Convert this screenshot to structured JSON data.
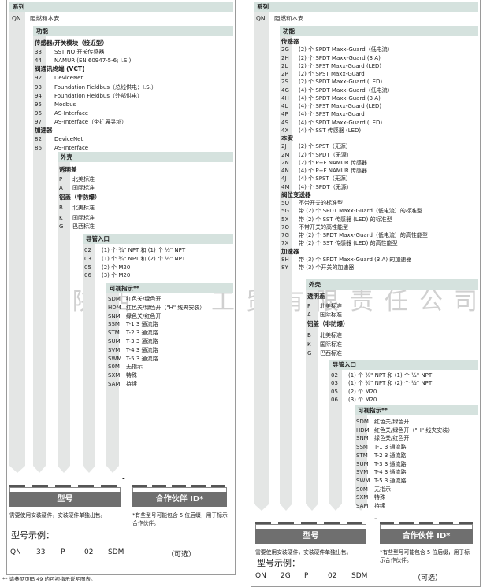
{
  "left": {
    "series_header": "系列",
    "series_code": "QN",
    "series_desc": "阻燃和本安",
    "functions": {
      "header": "功能",
      "rows": [
        {
          "h": "传感器/开关模块（接近型）"
        },
        {
          "c": "33",
          "t": "SST NO 开关传感器"
        },
        {
          "c": "44",
          "t": "NAMUR (EN 60947-5-6; I.S.)"
        },
        {
          "h": "阀通讯终端 (VCT)"
        },
        {
          "c": "92",
          "t": "DeviceNet"
        },
        {
          "c": "93",
          "t": "Foundation Fieldbus（总线供电；I.S.）"
        },
        {
          "c": "94",
          "t": "Foundation Fieldbus（外部供电）"
        },
        {
          "c": "95",
          "t": "Modbus"
        },
        {
          "c": "96",
          "t": "AS-Interface"
        },
        {
          "c": "97",
          "t": "AS-Interface（带扩展寻址）"
        },
        {
          "h": "加速器"
        },
        {
          "c": "82",
          "t": "DeviceNet"
        },
        {
          "c": "86",
          "t": "AS-Interface"
        }
      ]
    },
    "housing": {
      "header": "外壳",
      "rows": [
        {
          "h": "透明盖"
        },
        {
          "c": "P",
          "t": "北美标准"
        },
        {
          "c": "A",
          "t": "国际标准"
        },
        {
          "h": "铝盖（非防爆）"
        },
        {
          "c": "B",
          "t": "北美标准"
        },
        {
          "c": "K",
          "t": "国际标准"
        },
        {
          "c": "G",
          "t": "巴西标准"
        }
      ]
    },
    "conduit": {
      "header": "导管入口",
      "rows": [
        {
          "c": "02",
          "t": "(1) 个 ¾\" NPT 和 (1) 个 ½\" NPT"
        },
        {
          "c": "03",
          "t": "(1) 个 ¾\" NPT 和 (2) 个 ½\" NPT"
        },
        {
          "c": "05",
          "t": "(2) 个 M20"
        },
        {
          "c": "06",
          "t": "(3) 个 M20"
        }
      ]
    },
    "indicator": {
      "header": "可视指示**",
      "rows": [
        {
          "c": "SDM",
          "t": "红色关/绿色开"
        },
        {
          "c": "HDM",
          "t": "红色关/绿色开（\"H\" 线夹安装）"
        },
        {
          "c": "SNM",
          "t": "绿色关/红色开"
        },
        {
          "c": "SSM",
          "t": "T-1 3 通流路"
        },
        {
          "c": "STM",
          "t": "T-2 3 通流路"
        },
        {
          "c": "SUM",
          "t": "T-3 3 通流路"
        },
        {
          "c": "SVM",
          "t": "T-4 3 通流路"
        },
        {
          "c": "SWM",
          "t": "T-5 3 通流路"
        },
        {
          "c": "S0M",
          "t": "无指示"
        },
        {
          "c": "SXM",
          "t": "特殊"
        },
        {
          "c": "SAM",
          "t": "持续"
        }
      ]
    },
    "footer": {
      "separator": "-",
      "model_label": "型号",
      "partner_label": "合作伙伴 ID*",
      "note_left": "需要使用安装硬件，安装硬件单独出售。",
      "note_right": "*有些型号可能包含 5 位后缀，用于标示合作伙伴。",
      "example_label": "型号示例：",
      "example": [
        "QN",
        "33",
        "P",
        "02",
        "SDM"
      ],
      "optional": "（可选）"
    }
  },
  "right": {
    "series_header": "系列",
    "series_code": "QN",
    "series_desc": "阻燃和本安",
    "functions": {
      "header": "功能",
      "rows": [
        {
          "h": "传感器"
        },
        {
          "c": "2G",
          "t": "(2) 个 SPDT Maxx-Guard（低电流）"
        },
        {
          "c": "2H",
          "t": "(2) 个 SPDT Maxx-Guard (3 A)"
        },
        {
          "c": "2L",
          "t": "(2) 个 SPST Maxx-Guard (LED)"
        },
        {
          "c": "2P",
          "t": "(2) 个 SPST Maxx-Guard"
        },
        {
          "c": "2S",
          "t": "(2) 个 SPDT Maxx-Guard (LED)"
        },
        {
          "c": "4G",
          "t": "(4) 个 SPDT Maxx-Guard（低电流）"
        },
        {
          "c": "4H",
          "t": "(4) 个 SPDT Maxx-Guard (3 A)"
        },
        {
          "c": "4L",
          "t": "(4) 个 SPST Maxx-Guard (LED)"
        },
        {
          "c": "4P",
          "t": "(4) 个 SPST Maxx-Guard"
        },
        {
          "c": "4S",
          "t": "(4) 个 SPDT Maxx-Guard (LED)"
        },
        {
          "c": "4X",
          "t": "(4) 个 SST 传感器 (LED)"
        },
        {
          "h": "本安"
        },
        {
          "c": "2J",
          "t": "(2) 个 SPST（无源）"
        },
        {
          "c": "2M",
          "t": "(2) 个 SPDT（无源）"
        },
        {
          "c": "2N",
          "t": "(2) 个 P+F NAMUR 传感器"
        },
        {
          "c": "4N",
          "t": "(4) 个 P+F NAMUR 传感器"
        },
        {
          "c": "4J",
          "t": "(4) 个 SPST（无源）"
        },
        {
          "c": "4M",
          "t": "(4) 个 SPDT（无源）"
        },
        {
          "h": "阀位变送器"
        },
        {
          "c": "5O",
          "t": "不带开关的标准型"
        },
        {
          "c": "5G",
          "t": "带 (2) 个 SPDT Maxx-Guard（低电流）的标准型"
        },
        {
          "c": "5X",
          "t": "带 (2) 个 SST 传感器 (LED) 的标准型"
        },
        {
          "c": "7O",
          "t": "不带开关的高性能型"
        },
        {
          "c": "7G",
          "t": "带 (2) 个 SPDT Maxx-Guard（低电流）的高性能型"
        },
        {
          "c": "7X",
          "t": "带 (2) 个 SST 传感器 (LED) 的高性能型"
        },
        {
          "h": "加速器"
        },
        {
          "c": "8H",
          "t": "带 (3) 个 SPDT Maxx-Guard (3 A) 的加速器"
        },
        {
          "c": "8Y",
          "t": "带 (3) 个开关的加速器"
        }
      ]
    },
    "housing": {
      "header": "外壳",
      "rows": [
        {
          "h": "透明盖"
        },
        {
          "c": "P",
          "t": "北美标准"
        },
        {
          "c": "A",
          "t": "国际标准"
        },
        {
          "h": "铝盖（非防爆）"
        },
        {
          "c": "B",
          "t": "北美标准"
        },
        {
          "c": "K",
          "t": "国际标准"
        },
        {
          "c": "G",
          "t": "巴西标准"
        }
      ]
    },
    "conduit": {
      "header": "导管入口",
      "rows": [
        {
          "c": "02",
          "t": "(1) 个 ¾\" NPT 和 (1) 个 ½\" NPT"
        },
        {
          "c": "03",
          "t": "(1) 个 ¾\" NPT 和 (2) 个 ½\" NPT"
        },
        {
          "c": "05",
          "t": "(2) 个 M20"
        },
        {
          "c": "06",
          "t": "(3) 个 M20"
        }
      ]
    },
    "indicator": {
      "header": "可视指示**",
      "rows": [
        {
          "c": "SDM",
          "t": "红色关/绿色开"
        },
        {
          "c": "HDM",
          "t": "红色关/绿色开（\"H\" 线夹安装）"
        },
        {
          "c": "SNM",
          "t": "绿色关/红色开"
        },
        {
          "c": "SSM",
          "t": "T-1 3 通流路"
        },
        {
          "c": "STM",
          "t": "T-2 3 通流路"
        },
        {
          "c": "SUM",
          "t": "T-3 3 通流路"
        },
        {
          "c": "SVM",
          "t": "T-4 3 通流路"
        },
        {
          "c": "SWM",
          "t": "T-5 3 通流路"
        },
        {
          "c": "S0M",
          "t": "无指示"
        },
        {
          "c": "SXM",
          "t": "特殊"
        },
        {
          "c": "SAM",
          "t": "持续"
        }
      ]
    },
    "footer": {
      "separator": "-",
      "model_label": "型号",
      "partner_label": "合作伙伴 ID*",
      "note_left": "需要使用安装硬件，安装硬件单独出售。",
      "note_right": "*有些型号可能包含 5 位后缀，用于标示合作伙伴。",
      "example_label": "型号示例：",
      "example": [
        "QN",
        "2G",
        "P",
        "02",
        "SDM"
      ],
      "optional": "（可选）"
    }
  },
  "footnote": "** 请参见页码 49 的可视指示说明图表。",
  "watermark": "陕西　　工贸有限责任公司",
  "colors": {
    "header_bg": "#d5e2de",
    "column_bg": "#e4e6e5",
    "bar_bg": "#6f6f6f"
  }
}
